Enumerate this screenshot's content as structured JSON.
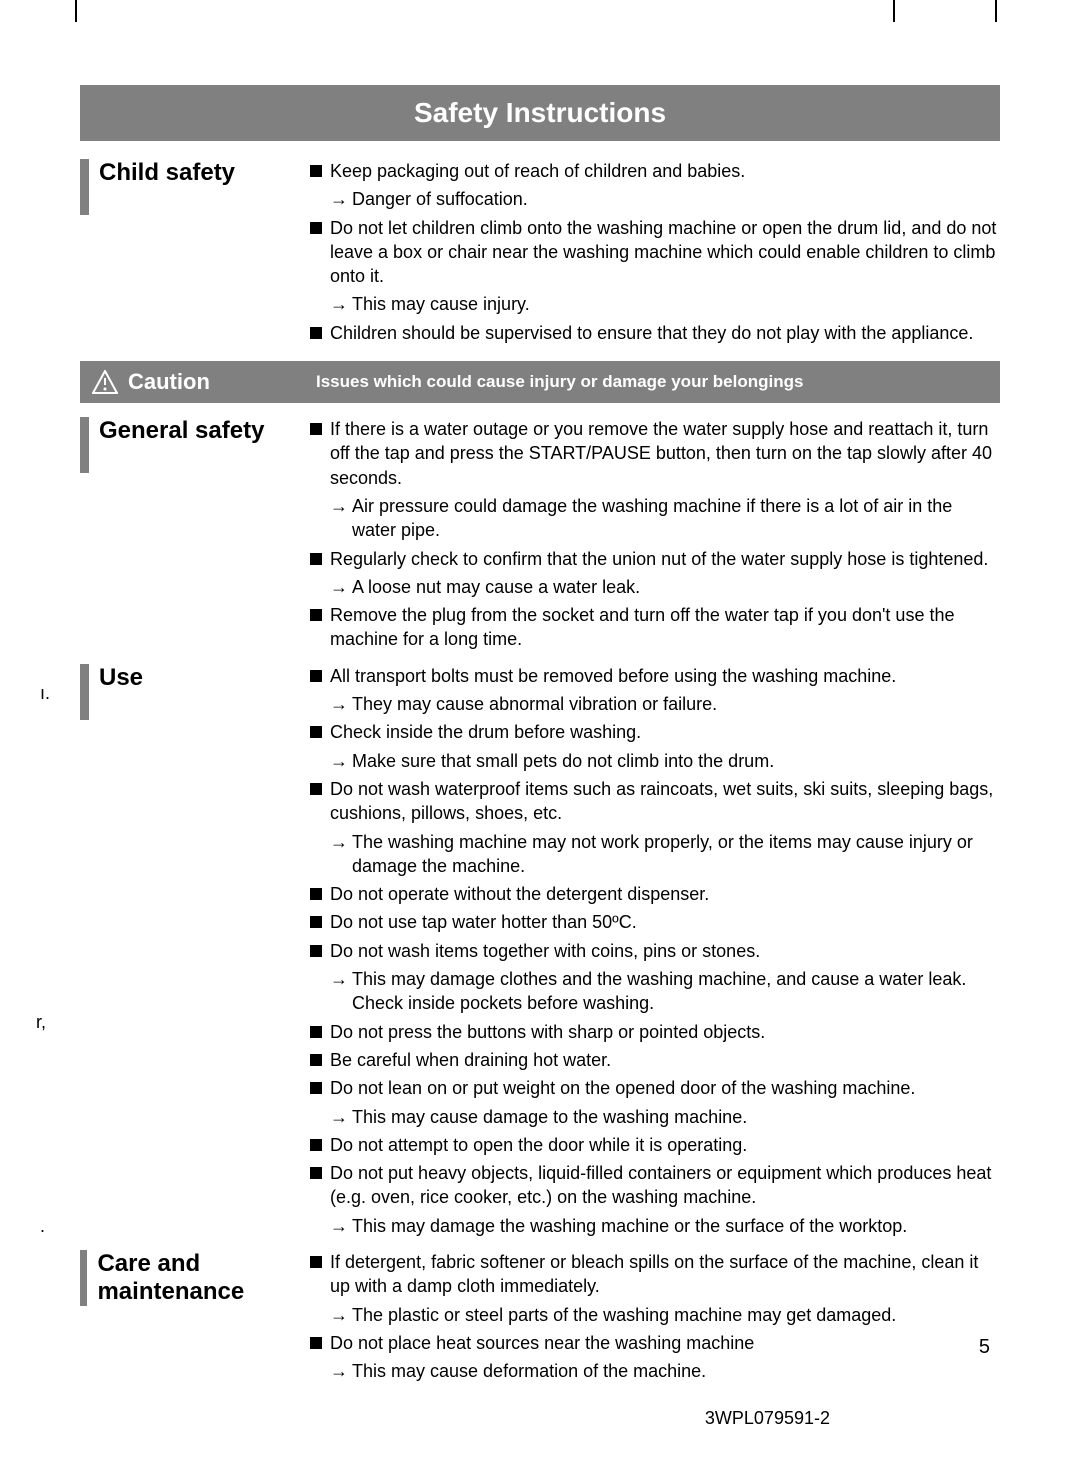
{
  "colors": {
    "bar_gray": "#808080",
    "text_white": "#ffffff",
    "text_black": "#000000",
    "bg": "#ffffff"
  },
  "typography": {
    "title_fontsize": 28,
    "heading_fontsize": 24,
    "body_fontsize": 18,
    "caution_label_fontsize": 22,
    "caution_desc_fontsize": 17
  },
  "title": "Safety Instructions",
  "page_number": "5",
  "doc_code": "3WPL079591-2",
  "edge_fragments": {
    "frag1": "ı.",
    "frag2": "r,",
    "frag3": "."
  },
  "caution": {
    "label": "Caution",
    "description": "Issues which could cause injury or damage your belongings"
  },
  "sections": [
    {
      "heading": "Child safety",
      "items": [
        {
          "text": "Keep packaging out of reach of children and babies.",
          "arrows": [
            "Danger of suffocation."
          ]
        },
        {
          "text": "Do not let children climb onto the washing machine or open the drum lid, and do not leave a box or chair near the washing machine which could enable children to climb onto it.",
          "arrows": [
            "This may cause injury."
          ]
        },
        {
          "text": "Children should be supervised to ensure that they do not play with the appliance.",
          "arrows": []
        }
      ]
    },
    {
      "heading": "General safety",
      "items": [
        {
          "text": "If there is a water outage or you remove the water supply hose and reattach it, turn off the tap and press the START/PAUSE button, then turn on the tap slowly after 40 seconds.",
          "arrows": [
            "Air pressure could damage the washing machine if there is a lot of air in the water pipe."
          ]
        },
        {
          "text": "Regularly check to confirm that the union nut of the water supply hose is tightened.",
          "arrows": [
            "A loose nut may cause a water leak."
          ]
        },
        {
          "text": "Remove the plug from the socket and turn off the water tap if you don't use the machine for a long time.",
          "arrows": []
        }
      ]
    },
    {
      "heading": "Use",
      "items": [
        {
          "text": "All transport bolts must be removed before using the washing machine.",
          "arrows": [
            "They may cause abnormal vibration or failure."
          ]
        },
        {
          "text": "Check inside the drum before washing.",
          "arrows": [
            "Make sure that small pets do not climb into the drum."
          ]
        },
        {
          "text": "Do not wash waterproof items such as raincoats, wet suits, ski suits, sleeping bags, cushions, pillows, shoes, etc.",
          "arrows": [
            "The washing machine may not work properly, or the items may cause injury or damage the machine."
          ]
        },
        {
          "text": "Do not operate without the detergent dispenser.",
          "arrows": []
        },
        {
          "text": "Do not use tap water hotter than 50ºC.",
          "arrows": []
        },
        {
          "text": "Do not wash items together with coins, pins or stones.",
          "arrows": [
            "This may damage clothes and the washing machine, and cause a water leak. Check inside pockets before washing."
          ]
        },
        {
          "text": "Do not press the buttons with sharp or pointed objects.",
          "arrows": []
        },
        {
          "text": "Be careful when draining hot water.",
          "arrows": []
        },
        {
          "text": "Do not lean on or put weight on the opened door of the washing machine.",
          "arrows": [
            "This may cause damage to the washing machine."
          ]
        },
        {
          "text": "Do not attempt to open the door while it is operating.",
          "arrows": []
        },
        {
          "text": "Do not put heavy objects, liquid-filled containers or equipment which produces heat (e.g. oven, rice cooker, etc.) on the washing machine.",
          "arrows": [
            "This may damage the washing machine or the surface of the worktop."
          ]
        }
      ]
    },
    {
      "heading": "Care and maintenance",
      "items": [
        {
          "text": "If detergent, fabric softener or bleach spills on the surface of the machine, clean it up with a damp cloth immediately.",
          "arrows": [
            "The plastic or steel parts of the washing machine may get damaged."
          ]
        },
        {
          "text": "Do not place heat sources near the washing machine",
          "arrows": [
            "This may cause deformation of the machine."
          ]
        }
      ]
    }
  ]
}
